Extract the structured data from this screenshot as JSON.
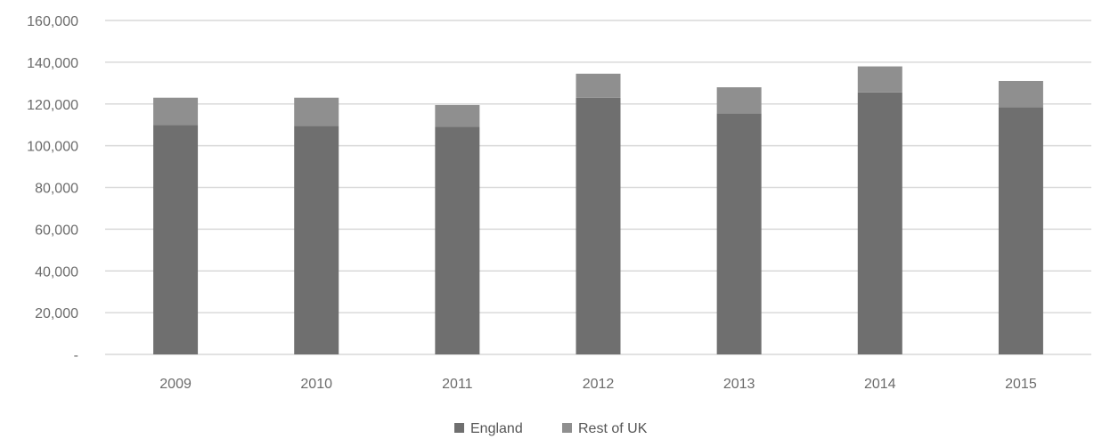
{
  "chart_data": {
    "type": "bar",
    "stacked": true,
    "categories": [
      "2009",
      "2010",
      "2011",
      "2012",
      "2013",
      "2014",
      "2015"
    ],
    "series": [
      {
        "name": "England",
        "color": "#6f6f6f",
        "values": [
          110000,
          109500,
          109000,
          123000,
          115500,
          125500,
          118500
        ]
      },
      {
        "name": "Rest of UK",
        "color": "#8f8f8f",
        "values": [
          13000,
          13500,
          10500,
          11500,
          12500,
          12500,
          12500
        ]
      }
    ],
    "title": "",
    "xlabel": "",
    "ylabel": "",
    "ylim": [
      0,
      160000
    ],
    "yticks": [
      0,
      20000,
      40000,
      60000,
      80000,
      100000,
      120000,
      140000,
      160000
    ],
    "ytick_labels": [
      "-",
      "20,000",
      "40,000",
      "60,000",
      "80,000",
      "100,000",
      "120,000",
      "140,000",
      "160,000"
    ],
    "grid": true,
    "gridline_color": "#d9d9d9",
    "legend": "bottom"
  }
}
